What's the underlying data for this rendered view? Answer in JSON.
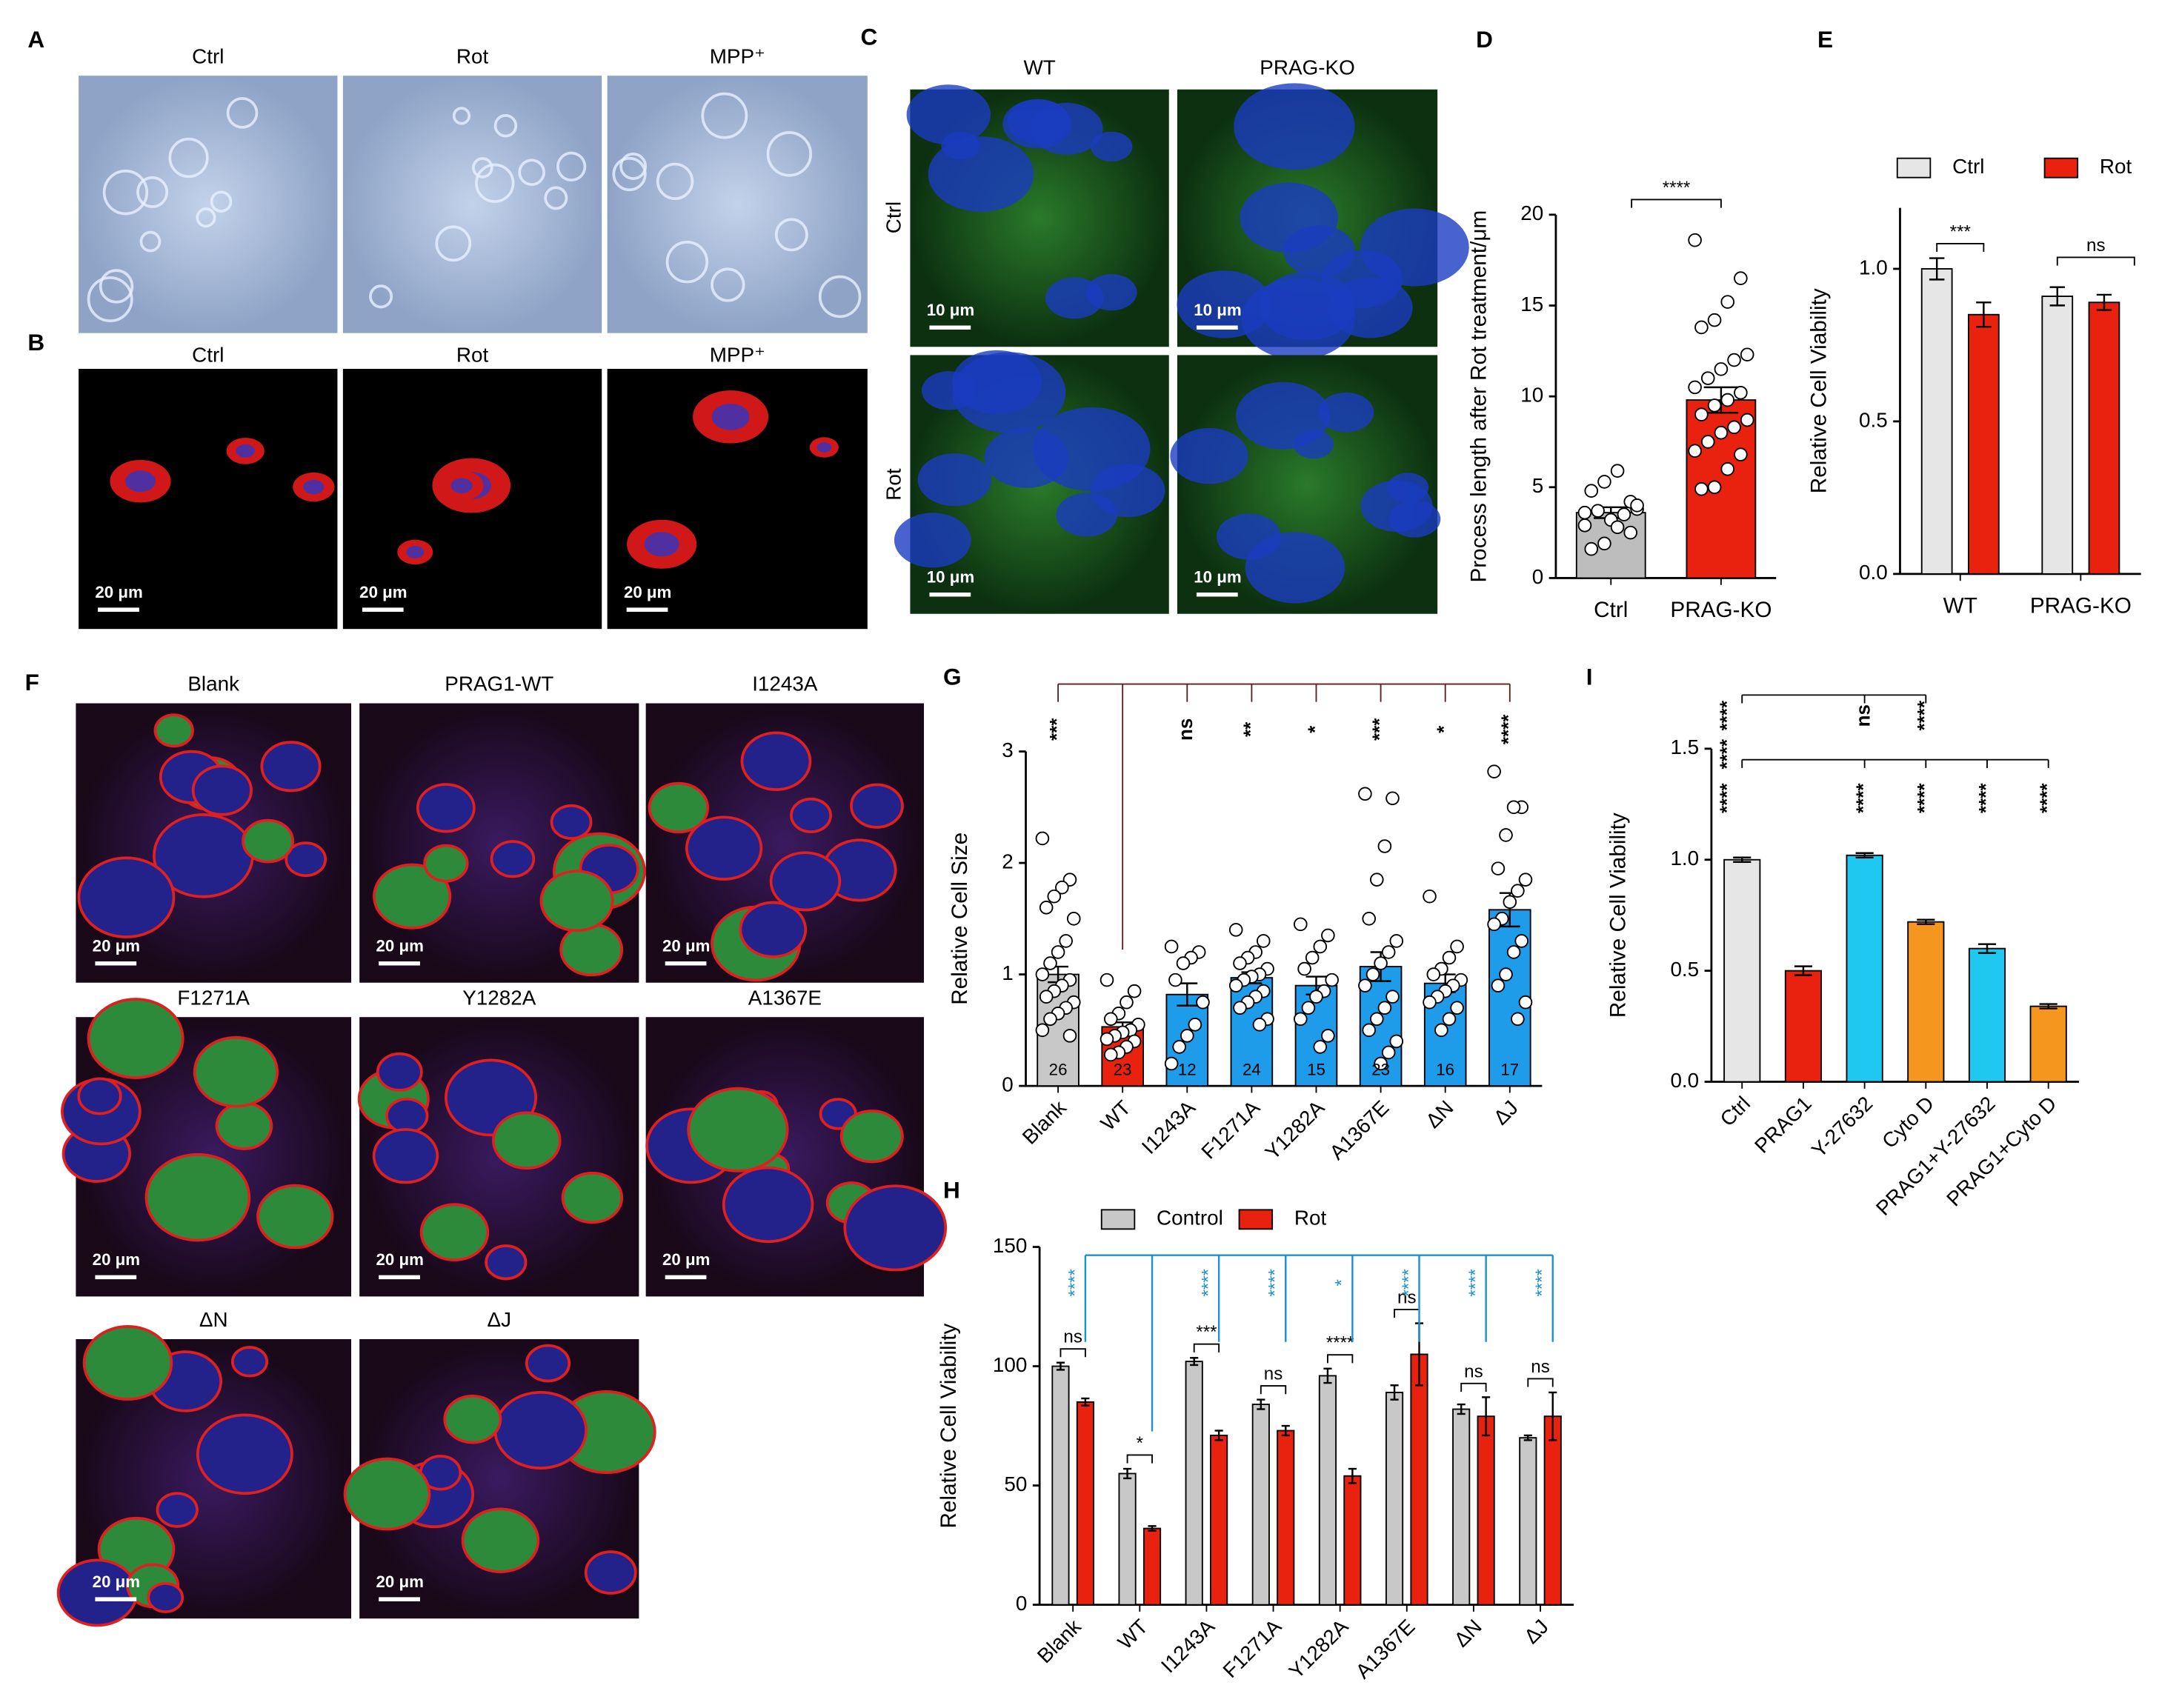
{
  "panel_letters": [
    "A",
    "B",
    "C",
    "D",
    "E",
    "F",
    "G",
    "H",
    "I"
  ],
  "images": {
    "A": {
      "titles": [
        "Ctrl",
        "Rot",
        "MPP⁺"
      ]
    },
    "B": {
      "titles": [
        "Ctrl",
        "Rot",
        "MPP⁺"
      ],
      "scale": "20 μm"
    },
    "C": {
      "columns": [
        "WT",
        "PRAG-KO"
      ],
      "rows": [
        "Ctrl",
        "Rot"
      ],
      "scale": "10 μm"
    },
    "F": {
      "titles": [
        "Blank",
        "PRAG1-WT",
        "I1243A",
        "F1271A",
        "Y1282A",
        "A1367E",
        "ΔN",
        "ΔJ"
      ],
      "scale": "20 μm"
    }
  },
  "chart_data": [
    {
      "type": "bar",
      "ylabel": "Process length after Rot treatment/μm",
      "categories": [
        "Ctrl",
        "PRAG-KO"
      ],
      "values": [
        3.6,
        9.8
      ],
      "errors": [
        0.3,
        0.7
      ],
      "colors": [
        "#bdbdbd",
        "#e8220f"
      ],
      "points": [
        [
          3.6,
          4.2,
          5.9,
          5.3,
          4.8,
          3.8,
          3.5,
          3.2,
          3.7,
          2.9,
          2.5,
          2.8,
          1.9,
          1.6,
          4.0
        ],
        [
          18.6,
          16.5,
          15.2,
          14.2,
          13.8,
          12.3,
          12.0,
          11.5,
          11.0,
          10.5,
          10.2,
          9.8,
          9.5,
          9.0,
          8.7,
          8.3,
          8.0,
          7.5,
          7.0,
          6.8,
          6.0,
          5.0,
          4.9
        ]
      ],
      "significance": "****",
      "ylim": [
        0,
        20
      ],
      "yticks": [
        0,
        5,
        10,
        15,
        20
      ]
    },
    {
      "type": "bar",
      "ylabel": "Relative Cell Viability",
      "categories": [
        "WT",
        "PRAG-KO"
      ],
      "series": [
        {
          "name": "Ctrl",
          "color": "#e6e6e6",
          "values": [
            1.0,
            0.91
          ],
          "errors": [
            0.035,
            0.03
          ]
        },
        {
          "name": "Rot",
          "color": "#e8220f",
          "values": [
            0.85,
            0.89
          ],
          "errors": [
            0.04,
            0.025
          ]
        }
      ],
      "significance": [
        "***",
        "ns"
      ],
      "ylim": [
        0,
        1.2
      ],
      "yticks": [
        {
          "value": 0,
          "label": "0.0"
        },
        0.5,
        {
          "value": 1,
          "label": "1.0"
        }
      ]
    },
    {
      "type": "bar",
      "ylabel": "Relative Cell Size",
      "categories": [
        "Blank",
        "WT",
        "I1243A",
        "F1271A",
        "Y1282A",
        "A1367E",
        "ΔN",
        "ΔJ"
      ],
      "values": [
        1.0,
        0.53,
        0.82,
        0.97,
        0.9,
        1.07,
        0.92,
        1.58
      ],
      "errors": [
        0.07,
        0.04,
        0.1,
        0.05,
        0.08,
        0.13,
        0.08,
        0.15
      ],
      "colors": [
        "#c8c8c8",
        "#e8220f",
        "#1e9be9",
        "#1e9be9",
        "#1e9be9",
        "#1e9be9",
        "#1e9be9",
        "#1e9be9"
      ],
      "n": [
        26,
        23,
        12,
        24,
        15,
        23,
        16,
        17
      ],
      "points": [
        [
          2.22,
          1.85,
          1.78,
          1.7,
          1.6,
          1.5,
          1.3,
          1.2,
          1.1,
          1.0,
          0.95,
          0.9,
          0.85,
          0.8,
          0.75,
          0.7,
          0.65,
          0.6,
          0.5,
          0.45
        ],
        [
          0.95,
          0.85,
          0.75,
          0.65,
          0.6,
          0.55,
          0.5,
          0.48,
          0.45,
          0.42,
          0.4,
          0.35,
          0.3,
          0.28
        ],
        [
          1.25,
          1.2,
          1.15,
          1.1,
          0.95,
          0.75,
          0.55,
          0.45,
          0.35,
          0.2
        ],
        [
          1.4,
          1.3,
          1.2,
          1.15,
          1.1,
          1.05,
          1.0,
          0.98,
          0.95,
          0.9,
          0.85,
          0.8,
          0.75,
          0.7,
          0.6,
          0.55
        ],
        [
          1.45,
          1.35,
          1.25,
          1.15,
          1.05,
          0.95,
          0.85,
          0.8,
          0.7,
          0.6,
          0.45,
          0.35
        ],
        [
          2.62,
          2.58,
          2.15,
          1.85,
          1.5,
          1.3,
          1.2,
          1.1,
          1.0,
          0.9,
          0.8,
          0.7,
          0.6,
          0.5,
          0.4,
          0.3,
          0.2
        ],
        [
          1.7,
          1.25,
          1.15,
          1.05,
          1.0,
          0.95,
          0.9,
          0.85,
          0.8,
          0.75,
          0.7,
          0.6,
          0.5
        ],
        [
          2.82,
          2.5,
          2.5,
          2.25,
          1.95,
          1.85,
          1.75,
          1.65,
          1.5,
          1.45,
          1.3,
          1.2,
          1.0,
          0.9,
          0.75,
          0.6
        ]
      ],
      "significance": [
        "***",
        null,
        "ns",
        "**",
        "*",
        "***",
        "*",
        "****"
      ],
      "ylim": [
        0,
        3
      ],
      "yticks": [
        0,
        1,
        2,
        3
      ]
    },
    {
      "type": "bar",
      "ylabel": "Relative Cell Viability",
      "categories": [
        "Blank",
        "WT",
        "I1243A",
        "F1271A",
        "Y1282A",
        "A1367E",
        "ΔN",
        "ΔJ"
      ],
      "series": [
        {
          "name": "Control",
          "color": "#c8c8c8",
          "values": [
            100,
            55,
            102,
            84,
            96,
            89,
            82,
            70
          ],
          "errors": [
            1.5,
            2,
            1.5,
            2,
            3,
            3,
            2,
            1
          ]
        },
        {
          "name": "Rot",
          "color": "#e8220f",
          "values": [
            85,
            32,
            71,
            73,
            54,
            105,
            79,
            79
          ],
          "errors": [
            1.5,
            1,
            2,
            2,
            3,
            13,
            8,
            10
          ]
        }
      ],
      "significance": [
        "ns",
        "*",
        "***",
        "ns",
        "****",
        "ns",
        "ns",
        "ns"
      ],
      "significance_vs_blank": [
        "****",
        null,
        "****",
        "****",
        "*",
        "****",
        "****",
        "****"
      ],
      "ylim": [
        0,
        150
      ],
      "yticks": [
        0,
        50,
        100,
        150
      ]
    },
    {
      "type": "bar",
      "ylabel": "Relative Cell Viability",
      "categories": [
        "Ctrl",
        "PRAG1",
        "Y-27632",
        "Cyto D",
        "PRAG1+Y-27632",
        "PRAG1+Cyto D"
      ],
      "values": [
        1.0,
        0.5,
        1.02,
        0.72,
        0.6,
        0.34
      ],
      "errors": [
        0.01,
        0.02,
        0.01,
        0.01,
        0.02,
        0.01
      ],
      "colors": [
        "#e6e6e6",
        "#e8220f",
        "#1ec8f0",
        "#f5961e",
        "#1ec8f0",
        "#f5961e"
      ],
      "significance_tiers": [
        [
          "****",
          null,
          "ns",
          "****",
          null,
          null
        ],
        [
          "****",
          null,
          null,
          null,
          null,
          null
        ],
        [
          "****",
          null,
          "****",
          "****",
          "****",
          "****"
        ]
      ],
      "ylim": [
        0,
        1.5
      ],
      "yticks": [
        {
          "value": 0,
          "label": "0.0"
        },
        0.5,
        {
          "value": 1,
          "label": "1.0"
        },
        1.5
      ]
    }
  ]
}
